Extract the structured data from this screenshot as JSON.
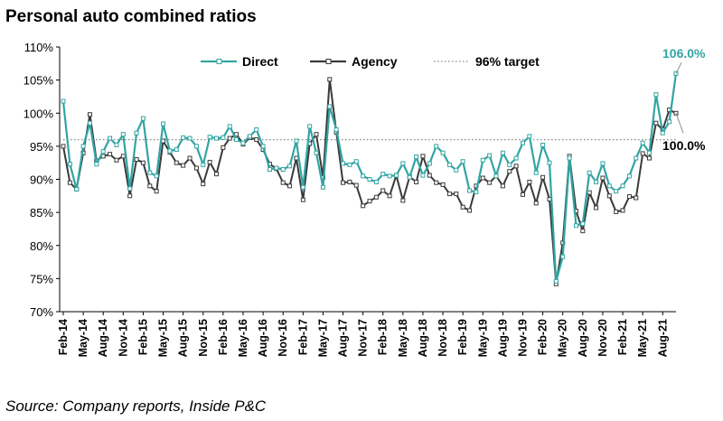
{
  "title": "Personal auto combined ratios",
  "source": "Source: Company reports, Inside P&C",
  "colors": {
    "direct": "#31a5a3",
    "agency": "#3a3a3a",
    "target": "#8a8a8a"
  },
  "chart_data": {
    "type": "line",
    "title": "Personal auto combined ratios",
    "xlabel": "",
    "ylabel": "",
    "ylim": [
      70,
      110
    ],
    "yticks": [
      70,
      75,
      80,
      85,
      90,
      95,
      100,
      105,
      110
    ],
    "ytick_labels": [
      "70%",
      "75%",
      "80%",
      "85%",
      "90%",
      "95%",
      "100%",
      "105%",
      "110%"
    ],
    "x_tick_labels": [
      "Feb-14",
      "May-14",
      "Aug-14",
      "Nov-14",
      "Feb-15",
      "May-15",
      "Aug-15",
      "Nov-15",
      "Feb-16",
      "May-16",
      "Aug-16",
      "Nov-16",
      "Feb-17",
      "May-17",
      "Aug-17",
      "Nov-17",
      "Feb-18",
      "May-18",
      "Aug-18",
      "Nov-18",
      "Feb-19",
      "May-19",
      "Aug-19",
      "Nov-19",
      "Feb-20",
      "May-20",
      "Aug-20",
      "Nov-20",
      "Feb-21",
      "May-21",
      "Aug-21"
    ],
    "tick_every": 3,
    "legend": [
      {
        "name": "Direct",
        "style": "line-marker"
      },
      {
        "name": "Agency",
        "style": "line-marker"
      },
      {
        "name": "96% target",
        "style": "dotted"
      }
    ],
    "legend_position": "top-center",
    "target": {
      "name": "96% target",
      "value": 96
    },
    "series": [
      {
        "name": "Direct",
        "values": [
          101.8,
          92.3,
          88.5,
          95.0,
          98.5,
          92.3,
          94.2,
          96.2,
          95.2,
          96.8,
          88.6,
          97.0,
          99.2,
          91.0,
          90.5,
          98.4,
          94.3,
          94.5,
          96.3,
          96.2,
          95.0,
          92.2,
          96.4,
          96.2,
          96.3,
          98.0,
          96.0,
          95.5,
          96.5,
          97.5,
          95.0,
          91.5,
          91.7,
          91.5,
          92.0,
          95.8,
          88.8,
          98.0,
          94.0,
          88.8,
          101.0,
          97.5,
          92.4,
          92.2,
          92.7,
          90.5,
          90.0,
          89.6,
          90.8,
          90.5,
          90.6,
          92.4,
          90.3,
          93.4,
          90.6,
          92.4,
          95.0,
          94.0,
          92.2,
          91.4,
          92.7,
          88.3,
          88.1,
          92.9,
          93.6,
          90.5,
          94.0,
          92.2,
          93.2,
          95.5,
          96.5,
          91.0,
          95.2,
          92.5,
          74.6,
          78.3,
          93.2,
          83.0,
          83.3,
          91.0,
          89.6,
          92.4,
          89.0,
          88.2,
          89.0,
          90.5,
          93.2,
          95.5,
          94.0,
          102.8,
          97.0,
          98.7,
          106.0
        ]
      },
      {
        "name": "Agency",
        "values": [
          95.0,
          89.5,
          88.5,
          94.0,
          99.8,
          92.8,
          93.5,
          93.8,
          92.9,
          93.5,
          87.5,
          93.0,
          92.5,
          89.0,
          88.2,
          95.8,
          94.1,
          92.5,
          92.1,
          93.2,
          91.7,
          89.3,
          92.6,
          90.8,
          94.8,
          96.2,
          96.8,
          95.3,
          96.3,
          96.0,
          94.5,
          92.3,
          91.6,
          89.5,
          89.0,
          93.2,
          86.9,
          95.4,
          96.8,
          90.3,
          105.1,
          97.1,
          89.5,
          89.6,
          89.1,
          86.0,
          86.7,
          87.3,
          88.3,
          87.5,
          90.6,
          86.8,
          90.4,
          89.6,
          93.5,
          90.6,
          89.5,
          89.2,
          87.8,
          87.8,
          85.8,
          85.3,
          89.0,
          90.2,
          89.5,
          90.5,
          89.0,
          91.2,
          92.0,
          87.7,
          89.6,
          86.4,
          90.3,
          87.0,
          74.2,
          80.4,
          93.5,
          85.2,
          82.2,
          88.0,
          85.7,
          90.2,
          87.5,
          85.1,
          85.3,
          87.4,
          87.2,
          93.9,
          93.2,
          98.5,
          97.5,
          100.5,
          100.0
        ]
      }
    ],
    "annotations": [
      {
        "series": "Direct",
        "text": "106.0%"
      },
      {
        "series": "Agency",
        "text": "100.0%"
      }
    ]
  }
}
